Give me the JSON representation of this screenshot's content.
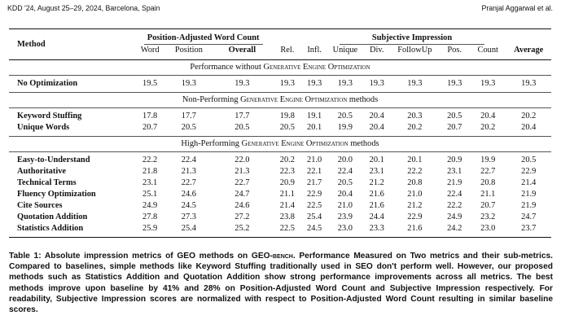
{
  "header": {
    "venue": "KDD '24, August 25–29, 2024, Barcelona, Spain",
    "authors": "Pranjal Aggarwal et al."
  },
  "table": {
    "method_header": "Method",
    "group_pawc": "Position-Adjusted Word Count",
    "group_si": "Subjective Impression",
    "subheaders": [
      "Word",
      "Position",
      "Overall",
      "Rel.",
      "Infl.",
      "Unique",
      "Div.",
      "FollowUp",
      "Pos.",
      "Count",
      "Average"
    ],
    "section_baseline": "Performance without Generative Engine Optimization",
    "section_nonperf": "Non-Performing Generative Engine Optimization methods",
    "section_highperf": "High-Performing Generative Engine Optimization methods",
    "baseline": [
      {
        "method": "No Optimization",
        "values": [
          "19.5",
          "19.3",
          "19.3",
          "19.3",
          "19.3",
          "19.3",
          "19.3",
          "19.3",
          "19.3",
          "19.3",
          "19.3"
        ]
      }
    ],
    "nonperforming": [
      {
        "method": "Keyword Stuffing",
        "values": [
          "17.8",
          "17.7",
          "17.7",
          "19.8",
          "19.1",
          "20.5",
          "20.4",
          "20.3",
          "20.5",
          "20.4",
          "20.2"
        ]
      },
      {
        "method": "Unique Words",
        "values": [
          "20.7",
          "20.5",
          "20.5",
          "20.5",
          "20.1",
          "19.9",
          "20.4",
          "20.2",
          "20.7",
          "20.2",
          "20.4"
        ]
      }
    ],
    "highperforming": [
      {
        "method": "Easy-to-Understand",
        "values": [
          "22.2",
          "22.4",
          "22.0",
          "20.2",
          "21.0",
          "20.0",
          "20.1",
          "20.1",
          "20.9",
          "19.9",
          "20.5"
        ]
      },
      {
        "method": "Authoritative",
        "values": [
          "21.8",
          "21.3",
          "21.3",
          "22.3",
          "22.1",
          "22.4",
          "23.1",
          "22.2",
          "23.1",
          "22.7",
          "22.9"
        ]
      },
      {
        "method": "Technical Terms",
        "values": [
          "23.1",
          "22.7",
          "22.7",
          "20.9",
          "21.7",
          "20.5",
          "21.2",
          "20.8",
          "21.9",
          "20.8",
          "21.4"
        ]
      },
      {
        "method": "Fluency Optimization",
        "values": [
          "25.1",
          "24.6",
          "24.7",
          "21.1",
          "22.9",
          "20.4",
          "21.6",
          "21.0",
          "22.4",
          "21.1",
          "21.9"
        ]
      },
      {
        "method": "Cite Sources",
        "values": [
          "24.9",
          "24.5",
          "24.6",
          "21.4",
          "22.5",
          "21.0",
          "21.6",
          "21.2",
          "22.2",
          "20.7",
          "21.9"
        ]
      },
      {
        "method": "Quotation Addition",
        "values": [
          "27.8",
          "27.3",
          "27.2",
          "23.8",
          "25.4",
          "23.9",
          "24.4",
          "22.9",
          "24.9",
          "23.2",
          "24.7"
        ],
        "bold": [
          2,
          10
        ]
      },
      {
        "method": "Statistics Addition",
        "values": [
          "25.9",
          "25.4",
          "25.2",
          "22.5",
          "24.5",
          "23.0",
          "23.3",
          "21.6",
          "24.2",
          "23.0",
          "23.7"
        ]
      }
    ]
  },
  "caption": {
    "text": "Table 1: Absolute impression metrics of GEO methods on GEO-bench. Performance Measured on Two metrics and their sub-metrics. Compared to baselines, simple methods like Keyword Stuffing traditionally used in SEO don't perform well. However, our proposed methods such as Statistics Addition and Quotation Addition show strong performance improvements across all metrics. The best methods improve upon baseline by 41% and 28% on Position-Adjusted Word Count and Subjective Impression respectively. For readability, Subjective Impression scores are normalized with respect to Position-Adjusted Word Count resulting in similar baseline scores."
  }
}
